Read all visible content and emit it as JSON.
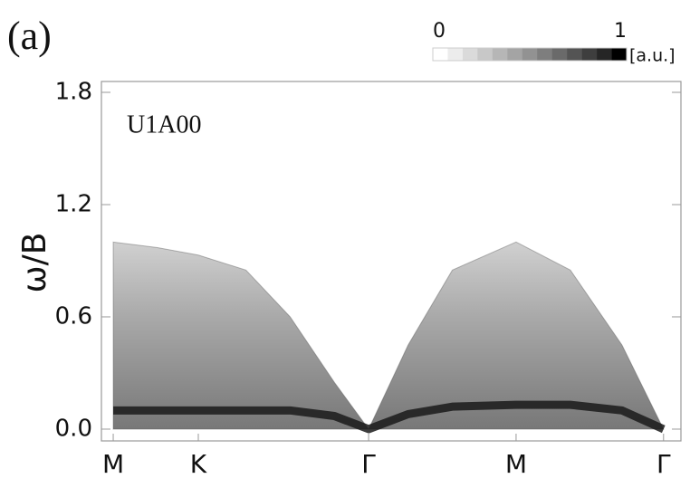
{
  "panel_label": "(a)",
  "chart_data": {
    "type": "spectrum",
    "title": "U1A00",
    "y_label": "ω/B",
    "x": [
      0,
      0.3,
      0.577,
      0.9,
      1.2,
      1.5,
      1.732,
      2.0,
      2.3,
      2.732,
      3.1,
      3.45,
      3.732
    ],
    "series": [
      {
        "color": "#505050",
        "values": [
          1.0,
          0.97,
          0.93,
          0.85,
          0.6,
          0.25,
          0,
          0.45,
          0.85,
          1.0,
          0.85,
          0.45,
          0
        ]
      },
      {
        "color": "#1a1a1a",
        "values": [
          0.1,
          0.1,
          0.1,
          0.1,
          0.1,
          0.07,
          0,
          0.08,
          0.12,
          0.13,
          0.13,
          0.1,
          0
        ]
      }
    ],
    "xlim": [
      -0.08,
      3.85
    ],
    "xticks": [
      {
        "value": 0,
        "label": "M"
      },
      {
        "value": 0.577,
        "label": "K"
      },
      {
        "value": 1.732,
        "label": "Γ"
      },
      {
        "value": 2.732,
        "label": "M"
      },
      {
        "value": 3.732,
        "label": "Γ"
      }
    ],
    "ylim": [
      -0.063,
      1.858
    ],
    "yticks": [
      {
        "value": 0,
        "label": "0.0"
      },
      0.6,
      1.2,
      1.8
    ],
    "colorbar": {
      "min": 0,
      "max": 1,
      "label": "[a.u.]",
      "colors": [
        "#ffffff",
        "#ececec",
        "#dadada",
        "#c8c8c8",
        "#b6b6b6",
        "#a4a4a4",
        "#929292",
        "#7e7e7e",
        "#6a6a6a",
        "#545454",
        "#3e3e3e",
        "#262626",
        "#000000"
      ]
    }
  }
}
